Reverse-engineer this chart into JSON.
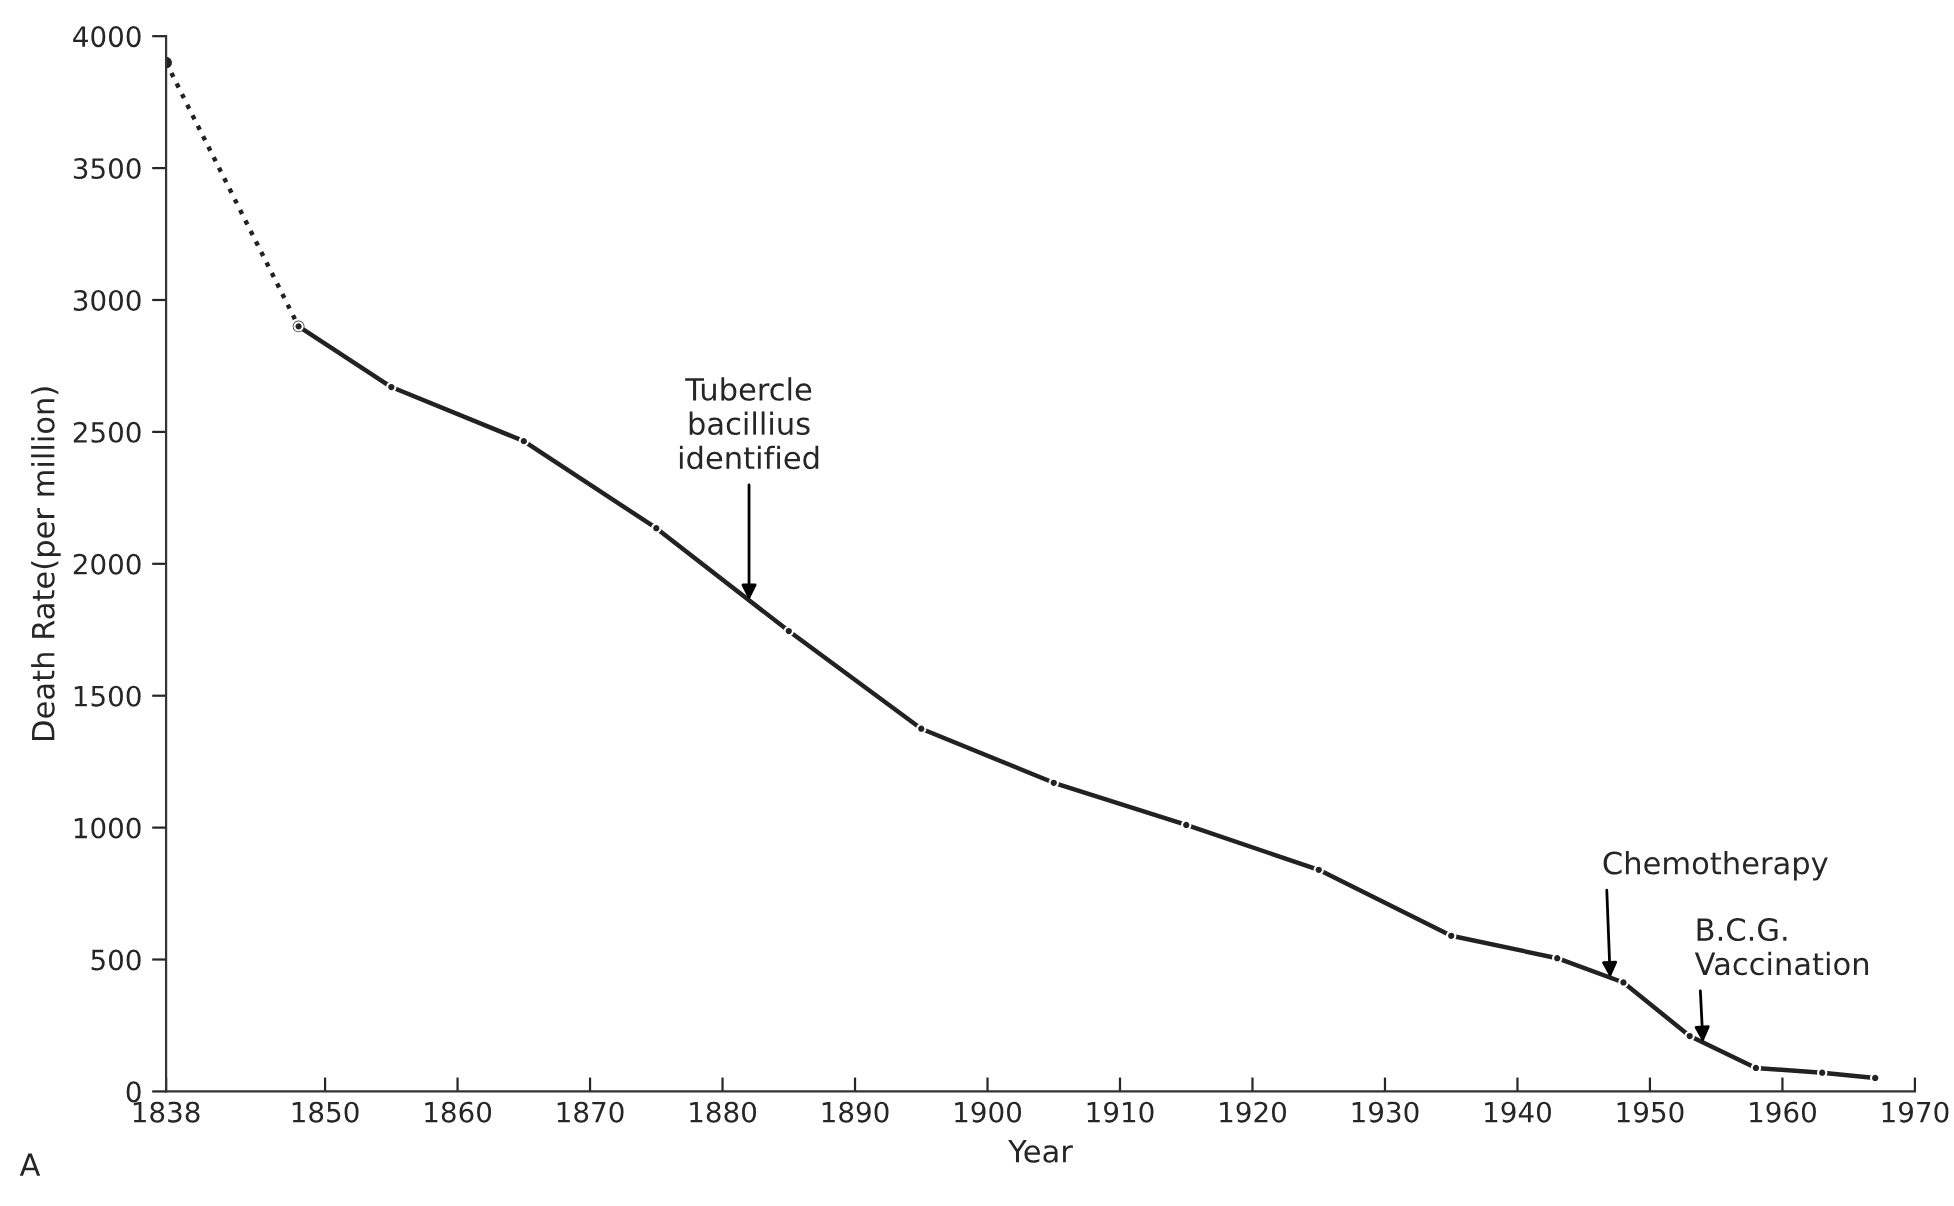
{
  "chart_data": {
    "type": "line",
    "xlabel": "Year",
    "ylabel": "Death Rate(per million)",
    "xlim": [
      1838,
      1970
    ],
    "xticks": [
      1838,
      1850,
      1860,
      1870,
      1880,
      1890,
      1900,
      1910,
      1920,
      1930,
      1940,
      1950,
      1960,
      1970
    ],
    "ylim": [
      0,
      4000
    ],
    "yticks": [
      0,
      500,
      1000,
      1500,
      2000,
      2500,
      3000,
      3500,
      4000
    ],
    "marker": "circle",
    "series": [
      {
        "color": "#222222",
        "line_style": "dotted",
        "x": [
          1838,
          1848
        ],
        "values": [
          3900,
          2900
        ]
      },
      {
        "color": "#222222",
        "line_style": "solid",
        "x": [
          1848,
          1855,
          1865,
          1875,
          1885,
          1895,
          1905,
          1915,
          1925,
          1935,
          1943,
          1948,
          1953,
          1958,
          1963,
          1967
        ],
        "values": [
          2900,
          2670,
          2465,
          2135,
          1745,
          1375,
          1170,
          1010,
          840,
          590,
          505,
          413,
          210,
          89,
          71,
          51
        ]
      }
    ],
    "annotations": [
      {
        "text": "Tubercle\nbacillius\nidentified",
        "x": 1882,
        "y": 1862
      },
      {
        "text": "Chemotherapy",
        "x": 1947,
        "y": 431
      },
      {
        "text": "B.C.G.\nVaccination",
        "x": 1954,
        "y": 186
      },
      "A"
    ]
  }
}
